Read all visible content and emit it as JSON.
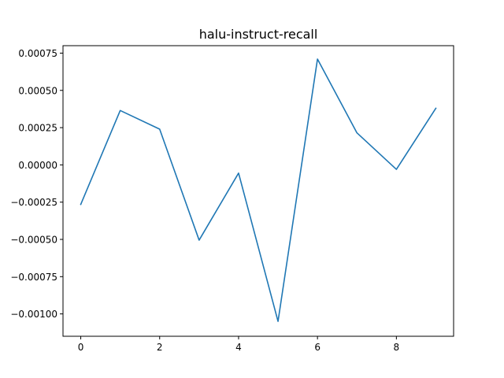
{
  "chart_data": {
    "type": "line",
    "title": "halu-instruct-recall",
    "xlabel": "",
    "ylabel": "",
    "x": [
      0,
      1,
      2,
      3,
      4,
      5,
      6,
      7,
      8,
      9
    ],
    "series": [
      {
        "values": [
          -0.000265,
          0.000365,
          0.00024,
          -0.000505,
          -5.5e-05,
          -0.00105,
          0.00071,
          0.000215,
          -3e-05,
          0.00038
        ],
        "color": "#1f77b4"
      }
    ],
    "xlim": [
      -0.45,
      9.45
    ],
    "ylim": [
      -0.00115,
      0.0008
    ],
    "xticks": [
      0,
      2,
      4,
      6,
      8
    ],
    "xtick_labels": [
      "0",
      "2",
      "4",
      "6",
      "8"
    ],
    "yticks": [
      -0.001,
      -0.00075,
      -0.0005,
      -0.00025,
      0.0,
      0.00025,
      0.0005,
      0.00075
    ],
    "ytick_labels": [
      "−0.00100",
      "−0.00075",
      "−0.00050",
      "−0.00025",
      "0.00000",
      "0.00025",
      "0.00050",
      "0.00075"
    ],
    "grid": false,
    "legend": "none"
  }
}
